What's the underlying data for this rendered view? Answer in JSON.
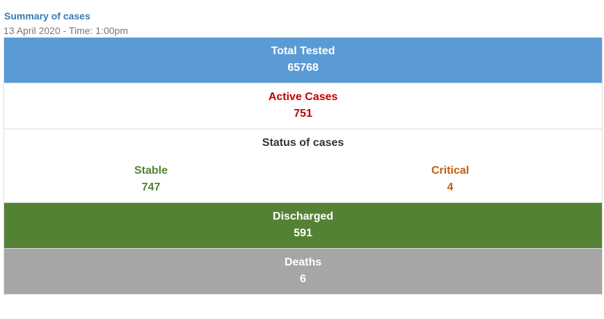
{
  "header": {
    "title": "Summary of cases",
    "subtitle": "13 April 2020 - Time: 1:00pm"
  },
  "summary": {
    "total_tested": {
      "label": "Total Tested",
      "value": "65768",
      "color": "#5b9bd5"
    },
    "active_cases": {
      "label": "Active Cases",
      "value": "751",
      "color": "#c00000"
    },
    "status": {
      "label": "Status of cases",
      "stable": {
        "label": "Stable",
        "value": "747",
        "color": "#538135"
      },
      "critical": {
        "label": "Critical",
        "value": "4",
        "color": "#c55a11"
      }
    },
    "discharged": {
      "label": "Discharged",
      "value": "591",
      "color": "#548235"
    },
    "deaths": {
      "label": "Deaths",
      "value": "6",
      "color": "#a6a6a6"
    }
  }
}
